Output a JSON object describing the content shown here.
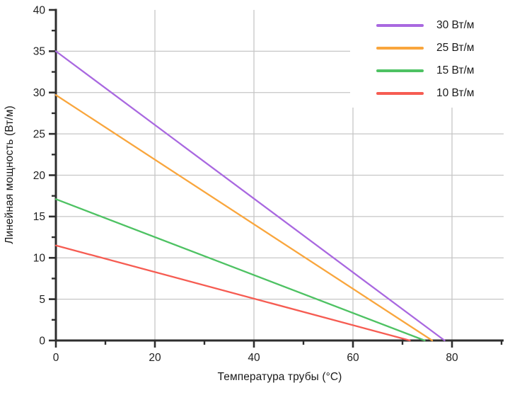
{
  "chart_data": {
    "type": "line",
    "title": "",
    "xlabel": "Температура трубы (°C)",
    "ylabel": "Линейная мощность (Вт/м)",
    "xlim": [
      0,
      90.5
    ],
    "ylim": [
      0,
      40
    ],
    "x_major_ticks": [
      0,
      20,
      40,
      60,
      80
    ],
    "x_minor_ticks": [
      10,
      30,
      50,
      70,
      90
    ],
    "y_major_ticks": [
      0,
      5,
      10,
      15,
      20,
      25,
      30,
      35,
      40
    ],
    "y_minor_ticks": [
      2.5,
      7.5,
      12.5,
      17.5,
      22.5,
      27.5,
      32.5,
      37.5
    ],
    "x_gridlines": [
      20,
      40,
      60,
      80
    ],
    "y_gridlines": [
      5,
      10,
      15,
      20,
      25,
      30,
      35
    ],
    "grid": true,
    "legend_position": "top-right",
    "series": [
      {
        "name": "30 Вт/м",
        "color": "#a968e0",
        "points": [
          [
            0,
            35.0
          ],
          [
            78.5,
            0
          ]
        ]
      },
      {
        "name": "25 Вт/м",
        "color": "#f9a63d",
        "points": [
          [
            0,
            29.7
          ],
          [
            76.0,
            0
          ]
        ]
      },
      {
        "name": "15 Вт/м",
        "color": "#4ec263",
        "points": [
          [
            0,
            17.1
          ],
          [
            74.5,
            0
          ]
        ]
      },
      {
        "name": "10 Вт/м",
        "color": "#f65c52",
        "points": [
          [
            0,
            11.5
          ],
          [
            71.5,
            0
          ]
        ]
      }
    ],
    "styles": {
      "grid_color": "#c6c6c6",
      "axis_color": "#2e2e2e",
      "text_color": "#1f1f1f",
      "background": "#ffffff"
    }
  }
}
